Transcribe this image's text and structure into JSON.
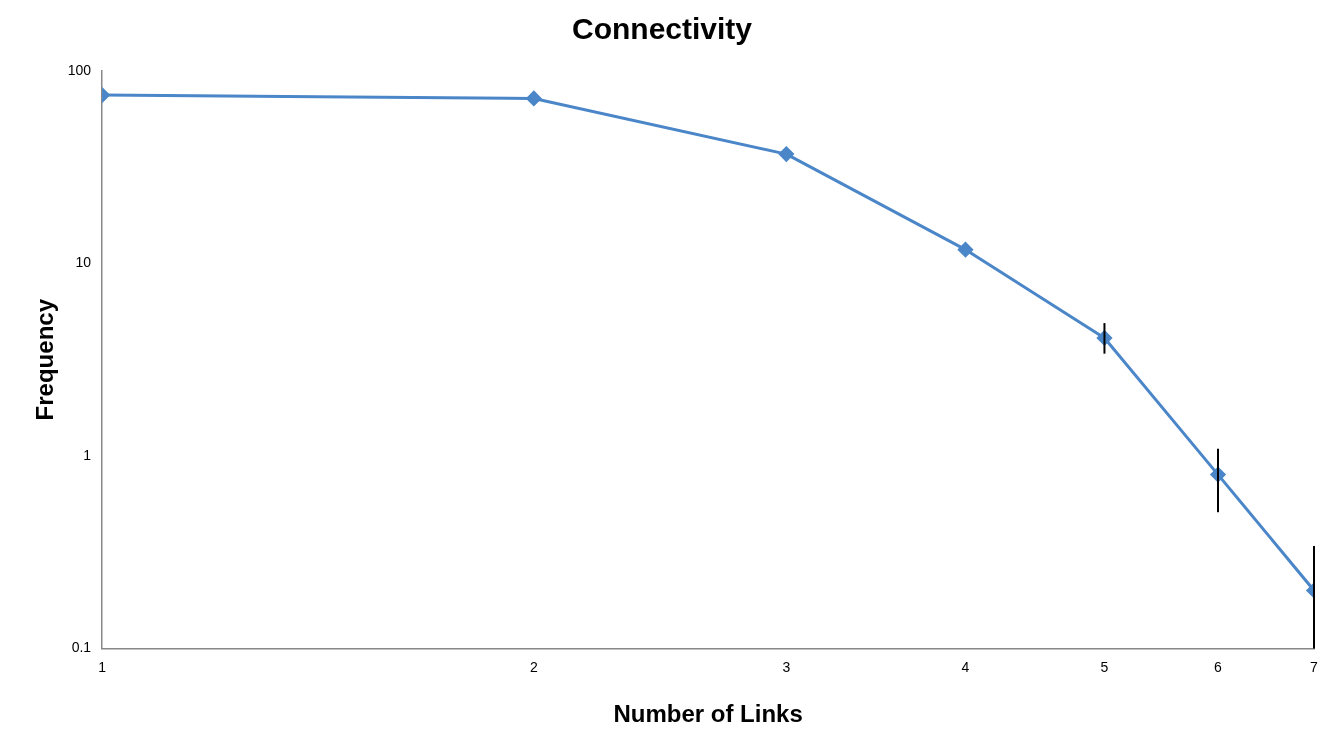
{
  "chart_data": {
    "type": "line",
    "title": "Connectivity",
    "xlabel": "Number of Links",
    "ylabel": "Frequency",
    "x": [
      1,
      2,
      3,
      4,
      5,
      6,
      7
    ],
    "series": [
      {
        "color": "#4a86c8",
        "values": [
          75,
          72,
          37,
          11.8,
          4.1,
          0.8,
          0.2
        ],
        "errors": [
          null,
          null,
          null,
          null,
          [
            3.4,
            4.9
          ],
          [
            0.51,
            1.09
          ],
          [
            0.1,
            0.34
          ]
        ]
      }
    ],
    "xlim": [
      1,
      7
    ],
    "xticks": [
      1,
      2,
      3,
      4,
      5,
      6,
      7
    ],
    "ylim": [
      0.1,
      100
    ],
    "yticks": [
      0.1,
      1,
      10,
      100
    ],
    "log": "xy",
    "grid": false,
    "legend": false,
    "marker": "diamond",
    "line_style": "solid"
  }
}
